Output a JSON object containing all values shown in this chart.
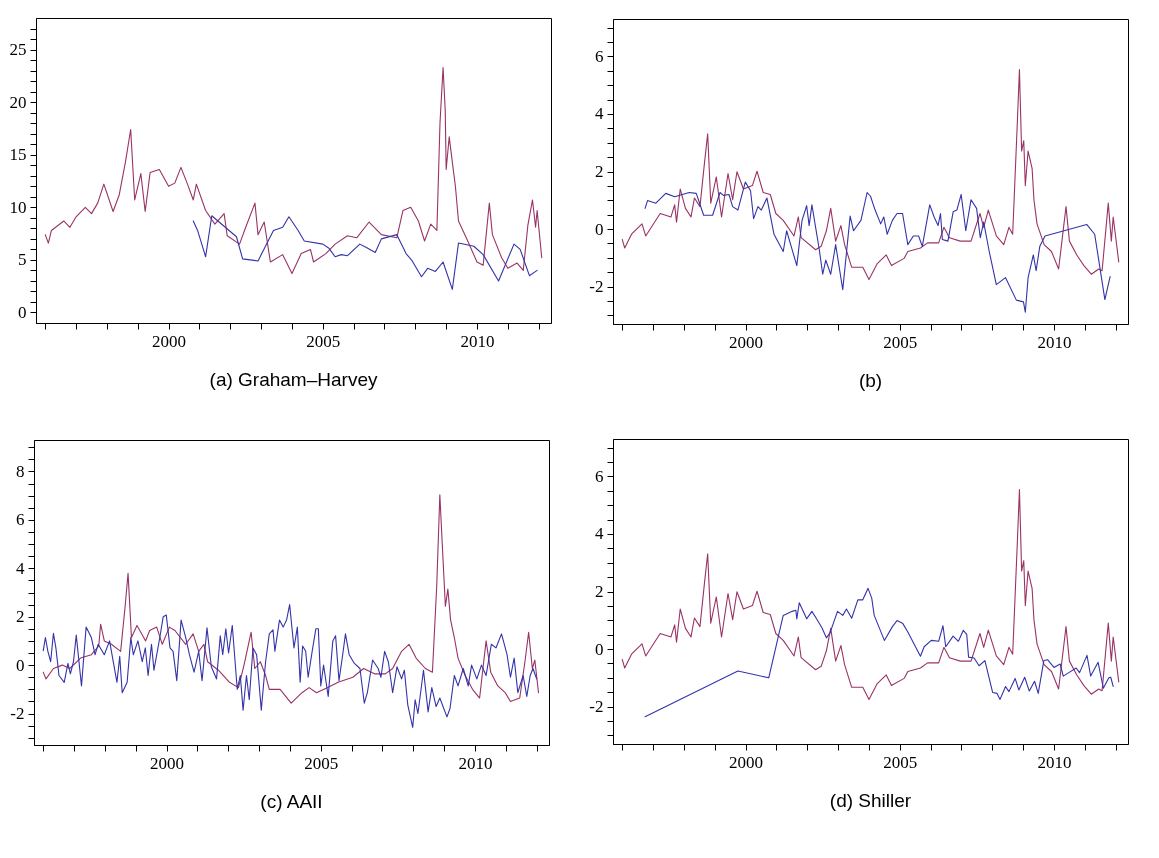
{
  "chart_data": [
    {
      "type": "line",
      "title": "(a) Graham–Harvey",
      "xlim": [
        1995.7,
        2012.4
      ],
      "ylim": [
        -1,
        28
      ],
      "xticks": [
        {
          "value": 1996,
          "label": null
        },
        {
          "value": 1997,
          "label": null
        },
        {
          "value": 1998,
          "label": null
        },
        {
          "value": 1999,
          "label": null
        },
        2000,
        {
          "value": 2001,
          "label": null
        },
        {
          "value": 2002,
          "label": null
        },
        {
          "value": 2003,
          "label": null
        },
        {
          "value": 2004,
          "label": null
        },
        2005,
        {
          "value": 2006,
          "label": null
        },
        {
          "value": 2007,
          "label": null
        },
        {
          "value": 2008,
          "label": null
        },
        {
          "value": 2009,
          "label": null
        },
        2010,
        {
          "value": 2011,
          "label": null
        },
        {
          "value": 2012,
          "label": null
        }
      ],
      "yticks": [
        0,
        {
          "value": 1,
          "label": null
        },
        {
          "value": 2,
          "label": null
        },
        {
          "value": 3,
          "label": null
        },
        {
          "value": 4,
          "label": null
        },
        5,
        {
          "value": 6,
          "label": null
        },
        {
          "value": 7,
          "label": null
        },
        {
          "value": 8,
          "label": null
        },
        {
          "value": 9,
          "label": null
        },
        10,
        {
          "value": 11,
          "label": null
        },
        {
          "value": 12,
          "label": null
        },
        {
          "value": 13,
          "label": null
        },
        {
          "value": 14,
          "label": null
        },
        15,
        {
          "value": 16,
          "label": null
        },
        {
          "value": 17,
          "label": null
        },
        {
          "value": 18,
          "label": null
        },
        {
          "value": 19,
          "label": null
        },
        20,
        {
          "value": 21,
          "label": null
        },
        {
          "value": 22,
          "label": null
        },
        {
          "value": 23,
          "label": null
        },
        {
          "value": 24,
          "label": null
        },
        25,
        {
          "value": 26,
          "label": null
        },
        {
          "value": 27,
          "label": null
        }
      ],
      "series": [
        {
          "color": "#993366",
          "x": [
            1996.0,
            1996.1,
            1996.2,
            1996.6,
            1996.8,
            1997.0,
            1997.3,
            1997.5,
            1997.7,
            1997.9,
            1998.2,
            1998.4,
            1998.6,
            1998.77,
            1998.9,
            1999.1,
            1999.24,
            1999.4,
            1999.7,
            2000.0,
            2000.2,
            2000.4,
            2000.6,
            2000.8,
            2000.9,
            2001.2,
            2001.5,
            2001.8,
            2001.9,
            2002.3,
            2002.5,
            2002.8,
            2002.9,
            2003.1,
            2003.3,
            2003.7,
            2004.0,
            2004.3,
            2004.6,
            2004.7,
            2005.1,
            2005.4,
            2005.8,
            2006.1,
            2006.5,
            2006.9,
            2007.4,
            2007.6,
            2007.85,
            2008.1,
            2008.3,
            2008.5,
            2008.7,
            2008.8,
            2008.9,
            2008.97,
            2009.0,
            2009.1,
            2009.2,
            2009.3,
            2009.4,
            2009.7,
            2010.0,
            2010.2,
            2010.4,
            2010.5,
            2010.8,
            2011.0,
            2011.3,
            2011.5,
            2011.65,
            2011.8,
            2011.9,
            2011.95,
            2012.1
          ],
          "values": [
            7.4,
            6.6,
            7.8,
            8.7,
            8.1,
            9.1,
            10.0,
            9.4,
            10.4,
            12.2,
            9.6,
            11.2,
            14.3,
            17.4,
            10.7,
            13.2,
            9.6,
            13.3,
            13.6,
            12.0,
            12.3,
            13.8,
            12.3,
            10.7,
            12.2,
            9.7,
            8.4,
            9.4,
            7.3,
            6.5,
            8.1,
            10.4,
            7.4,
            8.6,
            4.8,
            5.5,
            3.7,
            5.6,
            6.0,
            4.8,
            5.6,
            6.5,
            7.3,
            7.1,
            8.6,
            7.4,
            7.1,
            9.7,
            10.0,
            8.7,
            6.8,
            8.4,
            7.8,
            18.0,
            23.3,
            19.2,
            13.6,
            16.7,
            14.3,
            12.0,
            8.7,
            6.8,
            4.8,
            4.5,
            10.4,
            7.4,
            5.2,
            4.2,
            4.7,
            4.0,
            8.3,
            10.7,
            8.1,
            9.7,
            5.2
          ]
        },
        {
          "color": "#3333aa",
          "x": [
            2000.8,
            2000.94,
            2001.2,
            2001.4,
            2002.2,
            2002.4,
            2002.9,
            2003.4,
            2003.7,
            2003.9,
            2004.2,
            2004.4,
            2005.0,
            2005.2,
            2005.4,
            2005.6,
            2005.8,
            2006.2,
            2006.4,
            2006.7,
            2006.9,
            2007.4,
            2007.7,
            2007.9,
            2008.2,
            2008.4,
            2008.65,
            2008.9,
            2009.2,
            2009.4,
            2009.9,
            2010.2,
            2010.7,
            2011.2,
            2011.4,
            2011.7,
            2011.95
          ],
          "values": [
            8.7,
            7.8,
            5.3,
            9.2,
            7.2,
            5.1,
            4.9,
            7.8,
            8.1,
            9.1,
            7.8,
            6.8,
            6.5,
            6.1,
            5.3,
            5.5,
            5.4,
            6.5,
            6.2,
            5.7,
            7.0,
            7.4,
            5.6,
            4.9,
            3.4,
            4.2,
            3.9,
            4.8,
            2.2,
            6.6,
            6.3,
            5.5,
            3.0,
            6.5,
            6.0,
            3.5,
            4.0
          ]
        }
      ]
    },
    {
      "type": "line",
      "title": "(b)",
      "xlim": [
        1995.7,
        2012.4
      ],
      "ylim": [
        -3.3,
        7.3
      ],
      "xticks": [
        {
          "value": 1996,
          "label": null
        },
        {
          "value": 1997,
          "label": null
        },
        {
          "value": 1998,
          "label": null
        },
        {
          "value": 1999,
          "label": null
        },
        2000,
        {
          "value": 2001,
          "label": null
        },
        {
          "value": 2002,
          "label": null
        },
        {
          "value": 2003,
          "label": null
        },
        {
          "value": 2004,
          "label": null
        },
        2005,
        {
          "value": 2006,
          "label": null
        },
        {
          "value": 2007,
          "label": null
        },
        {
          "value": 2008,
          "label": null
        },
        {
          "value": 2009,
          "label": null
        },
        2010,
        {
          "value": 2011,
          "label": null
        },
        {
          "value": 2012,
          "label": null
        }
      ],
      "yticks": [
        {
          "value": -3,
          "label": null
        },
        {
          "value": -2.5,
          "label": null
        },
        -2,
        {
          "value": -1.5,
          "label": null
        },
        {
          "value": -1,
          "label": null
        },
        {
          "value": -0.5,
          "label": null
        },
        0,
        {
          "value": 0.5,
          "label": null
        },
        {
          "value": 1,
          "label": null
        },
        {
          "value": 1.5,
          "label": null
        },
        2,
        {
          "value": 2.5,
          "label": null
        },
        {
          "value": 3,
          "label": null
        },
        {
          "value": 3.5,
          "label": null
        },
        4,
        {
          "value": 4.5,
          "label": null
        },
        {
          "value": 5,
          "label": null
        },
        {
          "value": 5.5,
          "label": null
        },
        6,
        {
          "value": 6.5,
          "label": null
        },
        {
          "value": 7,
          "label": null
        }
      ],
      "series": [
        {
          "color": "#993366",
          "x": [
            1996.0,
            1996.08,
            1996.3,
            1996.64,
            1996.76,
            1997.23,
            1997.58,
            1997.7,
            1997.76,
            1997.88,
            1998.05,
            1998.23,
            1998.34,
            1998.52,
            1998.66,
            1998.77,
            1998.87,
            1999.05,
            1999.22,
            1999.43,
            1999.58,
            1999.72,
            1999.93,
            2000.22,
            2000.37,
            2000.57,
            2000.8,
            2000.98,
            2001.22,
            2001.57,
            2001.71,
            2001.8,
            2002.27,
            2002.45,
            2002.62,
            2002.76,
            2002.92,
            2003.09,
            2003.21,
            2003.44,
            2003.8,
            2004.0,
            2004.27,
            2004.56,
            2004.73,
            2005.14,
            2005.26,
            2005.67,
            2005.9,
            2006.26,
            2006.43,
            2006.61,
            2006.96,
            2007.31,
            2007.6,
            2007.72,
            2007.87,
            2008.13,
            2008.37,
            2008.54,
            2008.66,
            2008.81,
            2008.88,
            2008.95,
            2009.02,
            2009.07,
            2009.16,
            2009.29,
            2009.35,
            2009.45,
            2009.68,
            2009.92,
            2010.15,
            2010.39,
            2010.5,
            2010.74,
            2010.97,
            2011.21,
            2011.45,
            2011.56,
            2011.76,
            2011.86,
            2011.92,
            2012.1
          ],
          "values": [
            -0.36,
            -0.66,
            -0.18,
            0.18,
            -0.24,
            0.54,
            0.42,
            0.84,
            0.24,
            1.39,
            0.72,
            0.42,
            1.08,
            0.78,
            2.23,
            3.31,
            0.9,
            1.81,
            0.42,
            1.93,
            1.02,
            1.99,
            1.39,
            1.51,
            2.01,
            1.27,
            1.2,
            0.54,
            0.3,
            -0.24,
            0.42,
            -0.3,
            -0.72,
            -0.6,
            -0.06,
            0.72,
            -0.42,
            0.12,
            -0.54,
            -1.33,
            -1.33,
            -1.75,
            -1.2,
            -0.9,
            -1.27,
            -1.02,
            -0.78,
            -0.66,
            -0.48,
            -0.48,
            0.06,
            -0.3,
            -0.42,
            -0.42,
            0.54,
            0.06,
            0.66,
            -0.24,
            -0.54,
            0.06,
            -0.18,
            3.67,
            5.54,
            2.71,
            3.07,
            1.51,
            2.71,
            2.11,
            1.02,
            0.18,
            -0.54,
            -0.78,
            -1.39,
            0.78,
            -0.42,
            -0.9,
            -1.27,
            -1.57,
            -1.39,
            -1.45,
            0.9,
            -0.42,
            0.42,
            -1.14
          ]
        },
        {
          "color": "#3333aa",
          "x": [
            1996.74,
            1996.82,
            1997.09,
            1997.41,
            1997.7,
            1998.17,
            1998.4,
            1998.64,
            1998.93,
            1999.17,
            1999.28,
            1999.46,
            1999.58,
            1999.75,
            1999.99,
            2000.16,
            2000.26,
            2000.4,
            2000.51,
            2000.69,
            2000.92,
            2001.22,
            2001.33,
            2001.66,
            2001.83,
            2001.98,
            2002.06,
            2002.15,
            2002.39,
            2002.5,
            2002.6,
            2002.76,
            2002.92,
            2003.15,
            2003.39,
            2003.5,
            2003.74,
            2003.94,
            2004.05,
            2004.2,
            2004.38,
            2004.48,
            2004.59,
            2004.76,
            2004.91,
            2005.09,
            2005.26,
            2005.44,
            2005.61,
            2005.73,
            2005.97,
            2006.12,
            2006.24,
            2006.32,
            2006.38,
            2006.56,
            2006.73,
            2006.85,
            2006.99,
            2007.14,
            2007.31,
            2007.49,
            2007.61,
            2007.72,
            2007.9,
            2008.13,
            2008.43,
            2008.78,
            2009.01,
            2009.07,
            2009.16,
            2009.33,
            2009.42,
            2009.54,
            2009.71,
            2011.06,
            2011.32,
            2011.65,
            2011.82
          ],
          "values": [
            0.72,
            0.99,
            0.9,
            1.24,
            1.12,
            1.27,
            1.24,
            0.48,
            0.48,
            1.27,
            1.17,
            1.2,
            0.78,
            0.66,
            1.63,
            1.33,
            0.36,
            0.78,
            0.66,
            1.08,
            -0.18,
            -0.78,
            -0.06,
            -1.27,
            0.3,
            0.81,
            0.12,
            0.84,
            -0.72,
            -1.57,
            -1.08,
            -1.57,
            -0.54,
            -2.11,
            0.45,
            -0.06,
            0.3,
            1.27,
            1.14,
            0.66,
            0.18,
            0.42,
            -0.18,
            0.3,
            0.54,
            0.54,
            -0.54,
            -0.24,
            -0.24,
            -0.6,
            0.84,
            0.4,
            0.12,
            0.54,
            -0.36,
            -0.42,
            0.6,
            0.66,
            1.2,
            -0.06,
            1.02,
            0.72,
            -0.3,
            0.24,
            -0.78,
            -1.93,
            -1.69,
            -2.47,
            -2.53,
            -2.89,
            -1.69,
            -0.9,
            -1.45,
            -0.6,
            -0.24,
            0.16,
            -0.18,
            -2.45,
            -1.65
          ]
        }
      ]
    },
    {
      "type": "line",
      "title": "(c) AAII",
      "xlim": [
        1995.7,
        2012.4
      ],
      "ylim": [
        -3.3,
        9.3
      ],
      "xticks": [
        {
          "value": 1996,
          "label": null
        },
        {
          "value": 1997,
          "label": null
        },
        {
          "value": 1998,
          "label": null
        },
        {
          "value": 1999,
          "label": null
        },
        2000,
        {
          "value": 2001,
          "label": null
        },
        {
          "value": 2002,
          "label": null
        },
        {
          "value": 2003,
          "label": null
        },
        {
          "value": 2004,
          "label": null
        },
        2005,
        {
          "value": 2006,
          "label": null
        },
        {
          "value": 2007,
          "label": null
        },
        {
          "value": 2008,
          "label": null
        },
        {
          "value": 2009,
          "label": null
        },
        2010,
        {
          "value": 2011,
          "label": null
        },
        {
          "value": 2012,
          "label": null
        }
      ],
      "yticks": [
        {
          "value": -3,
          "label": null
        },
        {
          "value": -2.5,
          "label": null
        },
        -2,
        {
          "value": -1.5,
          "label": null
        },
        {
          "value": -1,
          "label": null
        },
        {
          "value": -0.5,
          "label": null
        },
        0,
        {
          "value": 0.5,
          "label": null
        },
        {
          "value": 1,
          "label": null
        },
        {
          "value": 1.5,
          "label": null
        },
        2,
        {
          "value": 2.5,
          "label": null
        },
        {
          "value": 3,
          "label": null
        },
        {
          "value": 3.5,
          "label": null
        },
        4,
        {
          "value": 4.5,
          "label": null
        },
        {
          "value": 5,
          "label": null
        },
        {
          "value": 5.5,
          "label": null
        },
        6,
        {
          "value": 6.5,
          "label": null
        },
        {
          "value": 7,
          "label": null
        },
        {
          "value": 7.5,
          "label": null
        },
        8,
        {
          "value": 8.5,
          "label": null
        },
        {
          "value": 9,
          "label": null
        }
      ],
      "series": [
        {
          "color": "#993366",
          "x": [
            1996.0,
            1996.09,
            1996.33,
            1996.62,
            1996.86,
            1997.21,
            1997.56,
            1997.8,
            1997.86,
            1997.98,
            1998.21,
            1998.51,
            1998.65,
            1998.75,
            1998.86,
            1999.04,
            1999.32,
            1999.45,
            1999.68,
            1999.86,
            2000.09,
            2000.27,
            2000.62,
            2000.86,
            2001.04,
            2001.21,
            2001.33,
            2001.68,
            2002.04,
            2002.33,
            2002.51,
            2002.74,
            2002.86,
            2003.04,
            2003.21,
            2003.33,
            2003.68,
            2004.04,
            2004.39,
            2004.62,
            2004.86,
            2005.21,
            2005.56,
            2006.04,
            2006.39,
            2006.74,
            2007.09,
            2007.33,
            2007.62,
            2007.86,
            2008.09,
            2008.39,
            2008.62,
            2008.76,
            2008.86,
            2008.95,
            2009.04,
            2009.12,
            2009.21,
            2009.33,
            2009.45,
            2009.68,
            2009.92,
            2010.15,
            2010.36,
            2010.51,
            2010.74,
            2010.98,
            2011.15,
            2011.45,
            2011.62,
            2011.74,
            2011.86,
            2011.94,
            2012.06
          ],
          "values": [
            -0.29,
            -0.57,
            -0.14,
            0,
            -0.14,
            0.29,
            0.43,
            0.79,
            1.69,
            1.0,
            0.86,
            0.57,
            2.36,
            3.79,
            1.14,
            1.64,
            1.0,
            1.43,
            1.57,
            0.86,
            1.57,
            1.43,
            0.86,
            1.29,
            0.57,
            0.86,
            0.14,
            -0.21,
            -0.71,
            -0.93,
            0,
            1.36,
            -0.14,
            0.14,
            -0.43,
            -1.0,
            -1.0,
            -1.57,
            -1.14,
            -0.93,
            -1.14,
            -0.93,
            -0.71,
            -0.5,
            -0.14,
            -0.36,
            -0.36,
            -0.14,
            0.57,
            0.86,
            0.29,
            -0.14,
            -0.29,
            3.29,
            7.04,
            4.71,
            2.43,
            3.14,
            1.86,
            1.14,
            0.29,
            -0.43,
            -1.0,
            -1.36,
            1.0,
            -0.29,
            -0.86,
            -1.14,
            -1.5,
            -1.36,
            0.14,
            1.36,
            -0.14,
            0.21,
            -1.14
          ]
        },
        {
          "color": "#3333aa",
          "x": [
            1996.0,
            1996.07,
            1996.15,
            1996.24,
            1996.33,
            1996.41,
            1996.51,
            1996.68,
            1996.8,
            1996.88,
            1996.98,
            1997.07,
            1997.24,
            1997.39,
            1997.56,
            1997.68,
            1997.78,
            1997.98,
            1998.15,
            1998.39,
            1998.48,
            1998.56,
            1998.72,
            1998.84,
            1998.92,
            1999.07,
            1999.21,
            1999.31,
            1999.4,
            1999.51,
            1999.59,
            1999.78,
            1999.89,
            1999.99,
            2000.11,
            2000.21,
            2000.33,
            2000.47,
            2000.62,
            2000.74,
            2000.89,
            2001.04,
            2001.15,
            2001.31,
            2001.45,
            2001.62,
            2001.74,
            2001.82,
            2001.92,
            2002.01,
            2002.13,
            2002.29,
            2002.39,
            2002.48,
            2002.59,
            2002.68,
            2002.8,
            2002.92,
            2003.07,
            2003.21,
            2003.33,
            2003.45,
            2003.51,
            2003.66,
            2003.78,
            2003.89,
            2003.99,
            2004.13,
            2004.24,
            2004.33,
            2004.41,
            2004.51,
            2004.59,
            2004.72,
            2004.84,
            2004.92,
            2005.0,
            2005.09,
            2005.24,
            2005.39,
            2005.48,
            2005.59,
            2005.71,
            2005.8,
            2005.92,
            2006.09,
            2006.27,
            2006.41,
            2006.51,
            2006.68,
            2006.86,
            2006.95,
            2007.07,
            2007.19,
            2007.33,
            2007.47,
            2007.62,
            2007.71,
            2007.82,
            2007.98,
            2008.06,
            2008.15,
            2008.33,
            2008.48,
            2008.6,
            2008.74,
            2008.86,
            2009.09,
            2009.19,
            2009.33,
            2009.45,
            2009.62,
            2009.78,
            2009.89,
            2010.06,
            2010.21,
            2010.36,
            2010.53,
            2010.68,
            2010.86,
            2011.04,
            2011.15,
            2011.27,
            2011.39,
            2011.56,
            2011.68,
            2011.79,
            2011.88,
            2012.0
          ],
          "values": [
            0.6,
            1.14,
            0.57,
            0.14,
            1.31,
            0.71,
            -0.43,
            -0.71,
            0.07,
            -0.36,
            0.14,
            1.24,
            -0.86,
            1.57,
            1.14,
            0.43,
            0.86,
            0.43,
            1.0,
            -0.71,
            0.36,
            -1.14,
            -0.71,
            1.14,
            0.43,
            1.0,
            0.14,
            0.71,
            -0.43,
            0.86,
            -0.21,
            1.14,
            2.0,
            2.07,
            0.71,
            0.57,
            -0.64,
            1.86,
            1.14,
            0.43,
            -0.29,
            0.57,
            -0.64,
            1.54,
            -0.07,
            -0.57,
            1.21,
            0.43,
            1.5,
            0.5,
            1.64,
            -1.0,
            -0.43,
            -1.86,
            -0.43,
            -1.43,
            0.71,
            0.43,
            -1.86,
            0.14,
            1.29,
            1.46,
            0.57,
            1.86,
            1.57,
            1.86,
            2.5,
            0.71,
            1.57,
            -0.71,
            0.79,
            0.57,
            -0.5,
            0.57,
            1.5,
            1.5,
            -0.86,
            0,
            -1.29,
            1.0,
            1.21,
            -0.64,
            0.43,
            1.29,
            0.43,
            0.07,
            -0.14,
            -1.57,
            -1.14,
            0.21,
            -0.14,
            -0.5,
            0.57,
            0.14,
            -1.14,
            -0.07,
            -0.57,
            -0.21,
            -1.64,
            -2.57,
            -1.43,
            -2.0,
            -0.21,
            -1.93,
            -0.93,
            -1.71,
            -1.36,
            -2.14,
            -1.79,
            -0.43,
            -0.86,
            -0.14,
            -0.86,
            0,
            -0.57,
            0,
            -0.43,
            0.86,
            0.71,
            1.29,
            0.43,
            -0.5,
            0.29,
            -1.14,
            -0.43,
            -1.29,
            -0.43,
            -0.14,
            -0.57
          ]
        }
      ]
    },
    {
      "type": "line",
      "title": "(d) Shiller",
      "xlim": [
        1995.7,
        2012.4
      ],
      "ylim": [
        -3.3,
        7.3
      ],
      "xticks": [
        {
          "value": 1996,
          "label": null
        },
        {
          "value": 1997,
          "label": null
        },
        {
          "value": 1998,
          "label": null
        },
        {
          "value": 1999,
          "label": null
        },
        2000,
        {
          "value": 2001,
          "label": null
        },
        {
          "value": 2002,
          "label": null
        },
        {
          "value": 2003,
          "label": null
        },
        {
          "value": 2004,
          "label": null
        },
        2005,
        {
          "value": 2006,
          "label": null
        },
        {
          "value": 2007,
          "label": null
        },
        {
          "value": 2008,
          "label": null
        },
        {
          "value": 2009,
          "label": null
        },
        2010,
        {
          "value": 2011,
          "label": null
        },
        {
          "value": 2012,
          "label": null
        }
      ],
      "yticks": [
        {
          "value": -3,
          "label": null
        },
        {
          "value": -2.5,
          "label": null
        },
        -2,
        {
          "value": -1.5,
          "label": null
        },
        {
          "value": -1,
          "label": null
        },
        {
          "value": -0.5,
          "label": null
        },
        0,
        {
          "value": 0.5,
          "label": null
        },
        {
          "value": 1,
          "label": null
        },
        {
          "value": 1.5,
          "label": null
        },
        2,
        {
          "value": 2.5,
          "label": null
        },
        {
          "value": 3,
          "label": null
        },
        {
          "value": 3.5,
          "label": null
        },
        4,
        {
          "value": 4.5,
          "label": null
        },
        {
          "value": 5,
          "label": null
        },
        {
          "value": 5.5,
          "label": null
        },
        6,
        {
          "value": 6.5,
          "label": null
        },
        {
          "value": 7,
          "label": null
        }
      ],
      "series": [
        {
          "color": "#993366",
          "x": [
            1996.0,
            1996.08,
            1996.3,
            1996.64,
            1996.76,
            1997.23,
            1997.58,
            1997.7,
            1997.76,
            1997.88,
            1998.05,
            1998.23,
            1998.34,
            1998.52,
            1998.66,
            1998.77,
            1998.87,
            1999.05,
            1999.22,
            1999.43,
            1999.58,
            1999.72,
            1999.93,
            2000.22,
            2000.37,
            2000.57,
            2000.8,
            2000.98,
            2001.22,
            2001.57,
            2001.71,
            2001.8,
            2002.27,
            2002.45,
            2002.62,
            2002.76,
            2002.92,
            2003.09,
            2003.21,
            2003.44,
            2003.8,
            2004.0,
            2004.27,
            2004.56,
            2004.73,
            2005.14,
            2005.26,
            2005.67,
            2005.9,
            2006.26,
            2006.43,
            2006.61,
            2006.96,
            2007.31,
            2007.6,
            2007.72,
            2007.87,
            2008.13,
            2008.37,
            2008.54,
            2008.66,
            2008.81,
            2008.88,
            2008.95,
            2009.02,
            2009.07,
            2009.16,
            2009.29,
            2009.35,
            2009.45,
            2009.68,
            2009.92,
            2010.15,
            2010.39,
            2010.5,
            2010.74,
            2010.97,
            2011.21,
            2011.45,
            2011.56,
            2011.76,
            2011.86,
            2011.92,
            2012.1
          ],
          "values": [
            -0.36,
            -0.66,
            -0.18,
            0.18,
            -0.24,
            0.54,
            0.42,
            0.84,
            0.24,
            1.39,
            0.72,
            0.42,
            1.08,
            0.78,
            2.23,
            3.31,
            0.9,
            1.81,
            0.42,
            1.93,
            1.02,
            1.99,
            1.39,
            1.51,
            2.01,
            1.27,
            1.2,
            0.54,
            0.3,
            -0.24,
            0.42,
            -0.3,
            -0.72,
            -0.6,
            -0.06,
            0.72,
            -0.42,
            0.12,
            -0.54,
            -1.33,
            -1.33,
            -1.75,
            -1.2,
            -0.9,
            -1.27,
            -1.02,
            -0.78,
            -0.66,
            -0.48,
            -0.48,
            0.06,
            -0.3,
            -0.42,
            -0.42,
            0.54,
            0.06,
            0.66,
            -0.24,
            -0.54,
            0.06,
            -0.18,
            3.67,
            5.54,
            2.71,
            3.07,
            1.51,
            2.71,
            2.11,
            1.02,
            0.18,
            -0.54,
            -0.78,
            -1.39,
            0.78,
            -0.42,
            -0.9,
            -1.27,
            -1.57,
            -1.39,
            -1.45,
            0.9,
            -0.42,
            0.42,
            -1.14
          ]
        },
        {
          "color": "#3333aa",
          "x": [
            1996.74,
            1999.75,
            2000.75,
            2001.22,
            2001.51,
            2001.63,
            2001.66,
            2001.74,
            2001.98,
            2002.15,
            2002.3,
            2002.47,
            2002.62,
            2002.74,
            2002.98,
            2003.15,
            2003.27,
            2003.44,
            2003.64,
            2003.8,
            2003.97,
            2004.09,
            2004.17,
            2004.5,
            2004.76,
            2004.91,
            2005.09,
            2005.26,
            2005.67,
            2005.79,
            2006.02,
            2006.26,
            2006.4,
            2006.49,
            2006.73,
            2006.9,
            2007.06,
            2007.17,
            2007.23,
            2007.41,
            2007.57,
            2007.76,
            2008.01,
            2008.15,
            2008.25,
            2008.43,
            2008.54,
            2008.74,
            2008.86,
            2009.05,
            2009.2,
            2009.37,
            2009.49,
            2009.67,
            2009.79,
            2010.0,
            2010.2,
            2010.3,
            2010.48,
            2010.72,
            2010.83,
            2011.07,
            2011.19,
            2011.43,
            2011.6,
            2011.78,
            2011.84,
            2011.92
          ],
          "values": [
            -2.35,
            -0.76,
            -1.0,
            1.17,
            1.31,
            1.35,
            1.05,
            1.61,
            1.05,
            1.31,
            1.05,
            0.75,
            0.39,
            0.57,
            1.31,
            1.17,
            1.39,
            1.07,
            1.71,
            1.71,
            2.11,
            1.77,
            1.17,
            0.3,
            0.78,
            0.99,
            0.9,
            0.59,
            -0.25,
            0.08,
            0.3,
            0.27,
            0.81,
            0.08,
            0.45,
            0.27,
            0.65,
            0.51,
            -0.28,
            -0.31,
            -0.58,
            -0.4,
            -1.51,
            -1.54,
            -1.75,
            -1.3,
            -1.48,
            -1.02,
            -1.42,
            -0.98,
            -1.46,
            -1.12,
            -1.54,
            -0.4,
            -0.37,
            -0.64,
            -0.52,
            -0.94,
            -0.82,
            -0.66,
            -0.82,
            -0.22,
            -0.94,
            -0.46,
            -1.36,
            -1.0,
            -0.98,
            -1.3
          ]
        }
      ]
    }
  ]
}
